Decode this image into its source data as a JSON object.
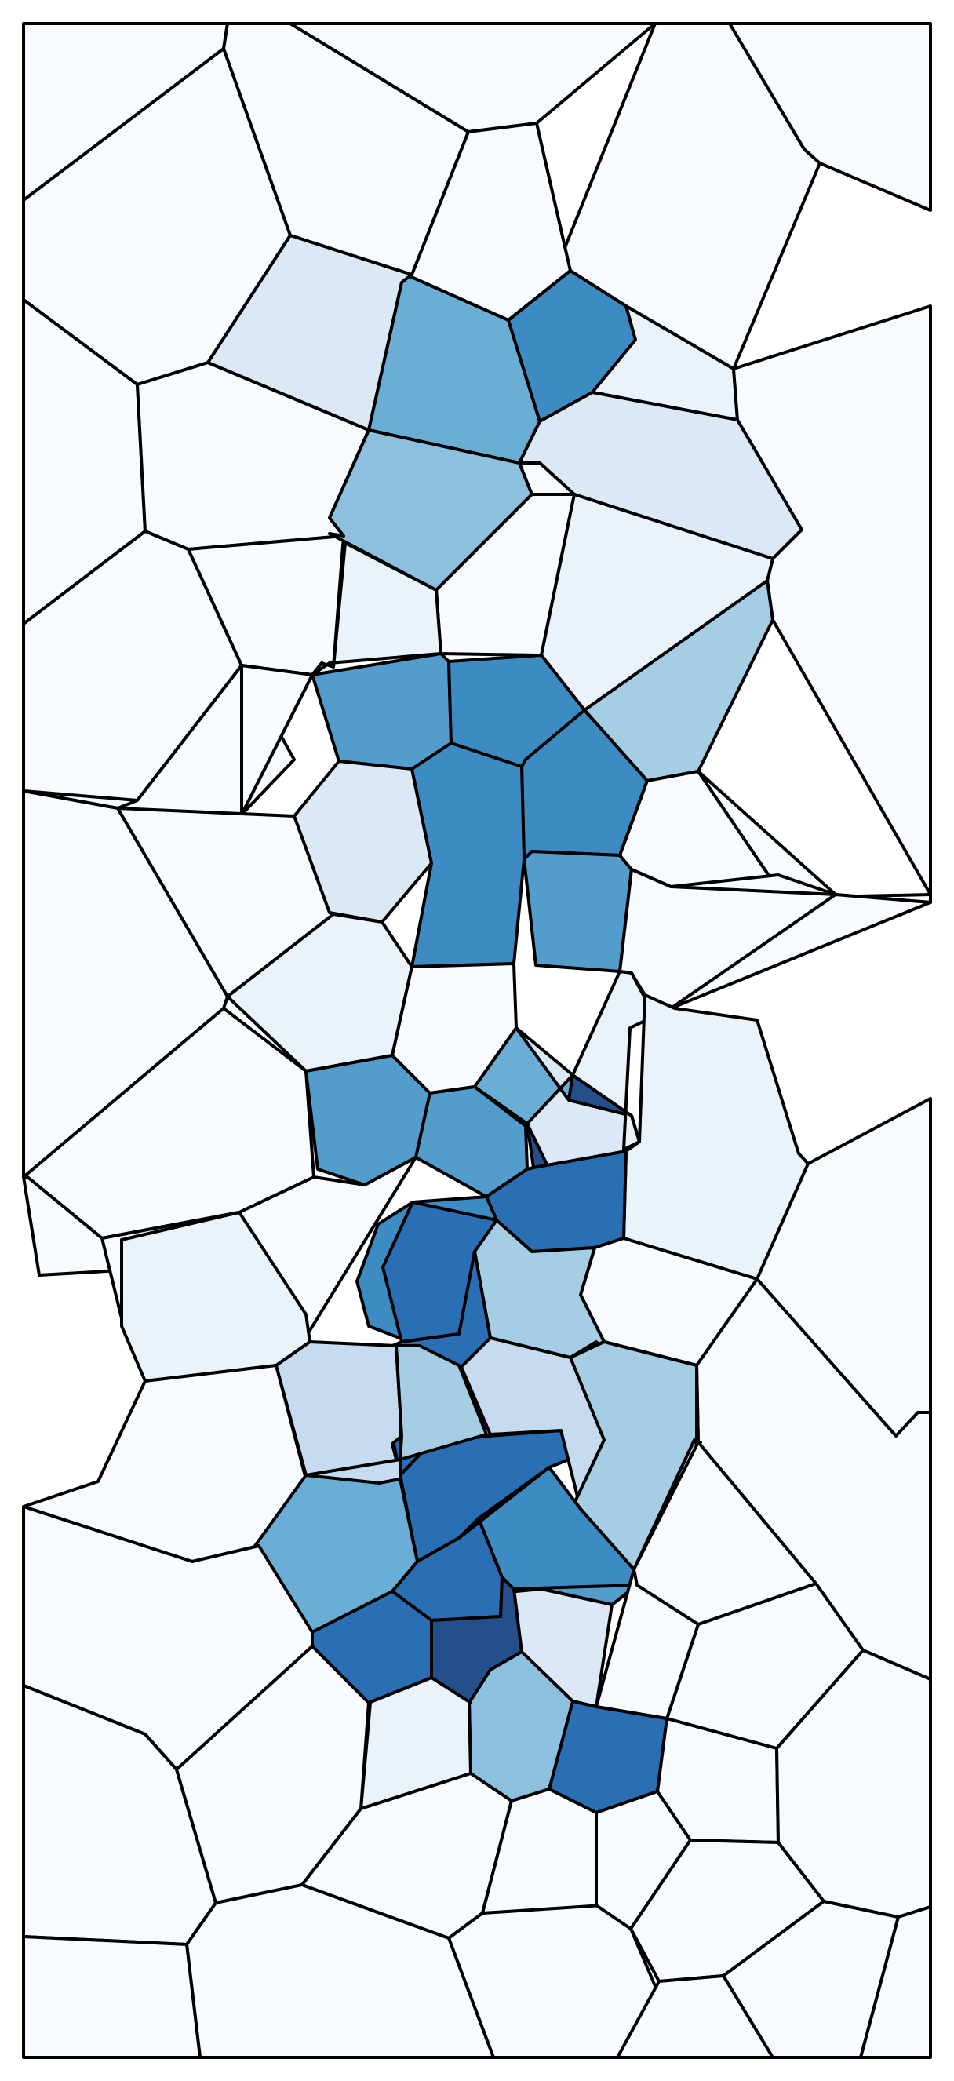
{
  "diagram": {
    "type": "voronoi-mosaic",
    "title": "",
    "background": "#ffffff",
    "edge_color": "#000000",
    "palette": {
      "c0": "#f7fbff",
      "c1": "#eaf2fa",
      "c2": "#dbe9f6",
      "c3": "#c6dbef",
      "c4": "#a5cde3",
      "c5": "#8dc0de",
      "c6": "#6aaed6",
      "c7": "#529dcc",
      "c8": "#3d8bc3",
      "c9": "#2a6fb3",
      "c10": "#1f5a9e",
      "c11": "#244f8a"
    },
    "cell_count": 88
  }
}
